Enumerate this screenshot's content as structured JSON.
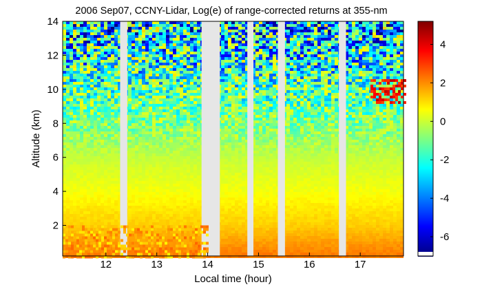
{
  "chart_data": {
    "type": "heatmap",
    "title": "2006 Sep07, CCNY-Lidar, Log(e) of range-corrected returns at 355-nm",
    "xlabel": "Local time (hour)",
    "ylabel": "Altitude (km)",
    "xlim": [
      11.15,
      17.85
    ],
    "ylim": [
      0.2,
      14
    ],
    "x_ticks": [
      12,
      13,
      14,
      15,
      16,
      17
    ],
    "y_ticks": [
      2,
      4,
      6,
      8,
      10,
      12,
      14
    ],
    "x_tick_labels": [
      "12",
      "13",
      "14",
      "15",
      "16",
      "17"
    ],
    "y_tick_labels": [
      "2",
      "4",
      "6",
      "8",
      "10",
      "12",
      "14"
    ],
    "colorbar": {
      "range": [
        -7,
        5.2
      ],
      "ticks": [
        4,
        2,
        0,
        -2,
        -4,
        -6
      ],
      "tick_labels": [
        "4",
        "2",
        "0",
        "-2",
        "-4",
        "-6"
      ],
      "colormap": "jet"
    },
    "data_gaps_hours": [
      [
        12.28,
        12.42
      ],
      [
        13.88,
        14.24
      ],
      [
        14.78,
        14.9
      ],
      [
        15.38,
        15.52
      ],
      [
        16.58,
        16.72
      ]
    ],
    "background_value_by_altitude_km": [
      {
        "alt": 0.3,
        "value": 2.2
      },
      {
        "alt": 1.0,
        "value": 1.8
      },
      {
        "alt": 2.0,
        "value": 1.2
      },
      {
        "alt": 3.0,
        "value": 0.9
      },
      {
        "alt": 4.0,
        "value": 0.5
      },
      {
        "alt": 5.5,
        "value": 0.1
      },
      {
        "alt": 6.5,
        "value": -0.3
      },
      {
        "alt": 8.0,
        "value": -0.9
      },
      {
        "alt": 10.0,
        "value": -1.6
      },
      {
        "alt": 12.0,
        "value": -2.4
      },
      {
        "alt": 14.0,
        "value": -3.2
      }
    ],
    "features": [
      {
        "label": "boundary-layer aerosol",
        "x_range": [
          11.15,
          14.0
        ],
        "alt_range": [
          0.2,
          2.0
        ],
        "value": 2.5
      },
      {
        "label": "cirrus cloud",
        "x_range": [
          17.2,
          17.85
        ],
        "alt_range": [
          9.3,
          10.6
        ],
        "value": 4.5
      }
    ]
  }
}
